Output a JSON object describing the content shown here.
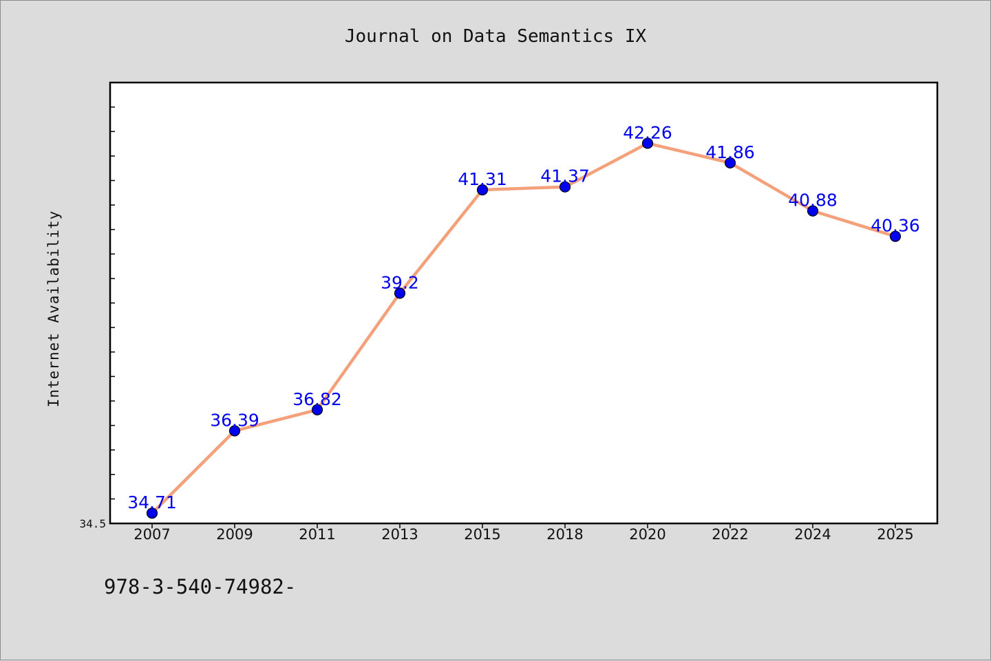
{
  "chart_data": {
    "type": "line",
    "title": "Journal on Data Semantics IX",
    "xlabel": "",
    "ylabel": "Internet Availability",
    "categories": [
      "2007",
      "2009",
      "2011",
      "2013",
      "2015",
      "2018",
      "2020",
      "2022",
      "2024",
      "2025"
    ],
    "series": [
      {
        "values": [
          34.71,
          36.39,
          36.82,
          39.2,
          41.31,
          41.37,
          42.26,
          41.86,
          40.88,
          40.36
        ]
      }
    ],
    "ylim": [
      34.5,
      43.5
    ],
    "y_tick_labels": [
      "34.5"
    ],
    "grid": false,
    "legend": "none",
    "line_color": "#f4a07a",
    "marker_color": "#0000ee",
    "label_color": "#0000ee",
    "plot_background": "#ffffff",
    "background": "#dcdcdc"
  },
  "footer_text": "978-3-540-74982-"
}
